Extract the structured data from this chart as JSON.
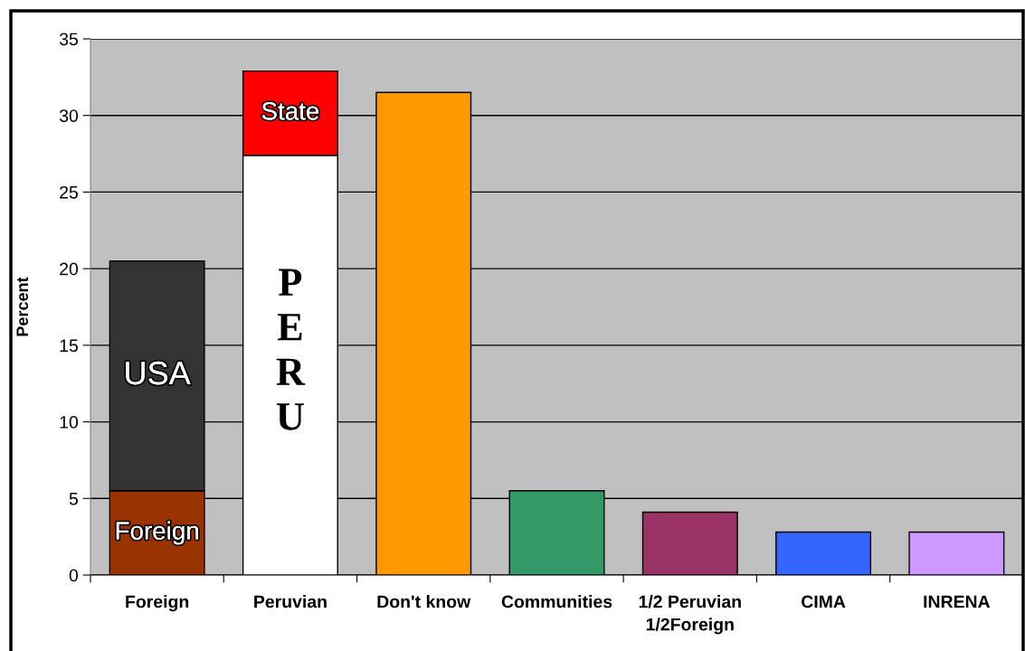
{
  "chart_data": {
    "type": "bar",
    "stacked": true,
    "ylabel": "Percent",
    "categories": [
      "Foreign",
      "Peruvian",
      "Don't know",
      "Communities",
      "1/2 Peruvian\n1/2Foreign",
      "CIMA",
      "INRENA"
    ],
    "series": [
      {
        "name": "Foreign",
        "color": "#993300",
        "values": [
          5.5,
          null,
          null,
          null,
          null,
          null,
          null
        ]
      },
      {
        "name": "USA",
        "color": "#333333",
        "values": [
          15.0,
          null,
          null,
          null,
          null,
          null,
          null
        ]
      },
      {
        "name": "PERU",
        "color": "#ffffff",
        "values": [
          null,
          27.4,
          null,
          null,
          null,
          null,
          null
        ]
      },
      {
        "name": "State",
        "color": "#ff0000",
        "values": [
          null,
          5.5,
          null,
          null,
          null,
          null,
          null
        ]
      },
      {
        "colors": [
          "#993300",
          "#ffffff",
          "#ff9900",
          "#339966",
          "#993366",
          "#3366ff",
          "#cc99ff"
        ],
        "values": [
          null,
          null,
          31.5,
          5.5,
          4.1,
          2.8,
          2.8
        ]
      }
    ],
    "ylim": [
      0,
      35
    ],
    "yticks": [
      0,
      5,
      10,
      15,
      20,
      25,
      30,
      35
    ],
    "grid": "y",
    "legend": false
  }
}
